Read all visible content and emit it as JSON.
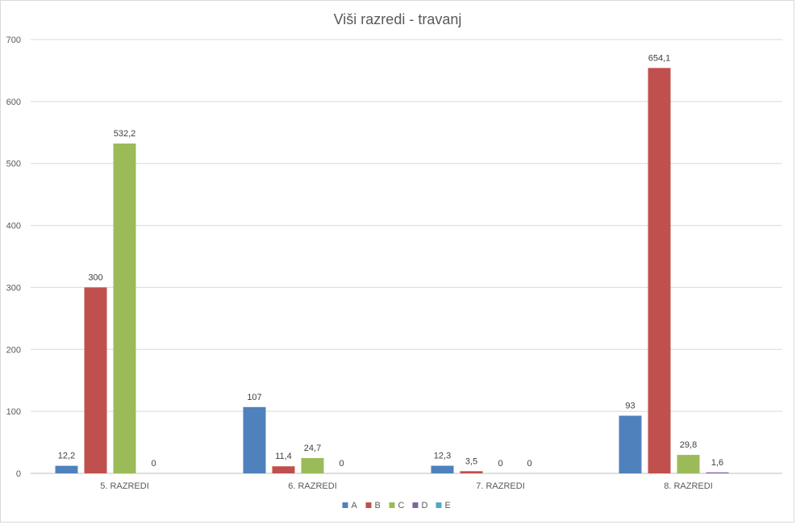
{
  "chart_data": {
    "type": "bar",
    "title": "Viši razredi - travanj",
    "categories": [
      "5. RAZREDI",
      "6. RAZREDI",
      "7. RAZREDI",
      "8. RAZREDI"
    ],
    "series": [
      {
        "name": "A",
        "color": "#4f81bd",
        "values": [
          12.2,
          107,
          12.3,
          93
        ],
        "labels": [
          "12,2",
          "107",
          "12,3",
          "93"
        ]
      },
      {
        "name": "B",
        "color": "#c0504d",
        "values": [
          300,
          11.4,
          3.5,
          654.1
        ],
        "labels": [
          "300",
          "11,4",
          "3,5",
          "654,1"
        ]
      },
      {
        "name": "C",
        "color": "#9bbb59",
        "values": [
          532.2,
          24.7,
          0,
          29.8
        ],
        "labels": [
          "532,2",
          "24,7",
          "0",
          "29,8"
        ]
      },
      {
        "name": "D",
        "color": "#8064a2",
        "values": [
          0,
          0,
          0,
          1.6
        ],
        "labels": [
          "0",
          "0",
          "0",
          "1,6"
        ]
      },
      {
        "name": "E",
        "color": "#4bacc6",
        "values": [
          null,
          null,
          null,
          null
        ],
        "labels": [
          "",
          "",
          "",
          ""
        ]
      }
    ],
    "yticks": [
      "0",
      "100",
      "200",
      "300",
      "400",
      "500",
      "600",
      "700"
    ],
    "ylim": [
      0,
      700
    ],
    "grid": true,
    "legend_position": "bottom"
  }
}
